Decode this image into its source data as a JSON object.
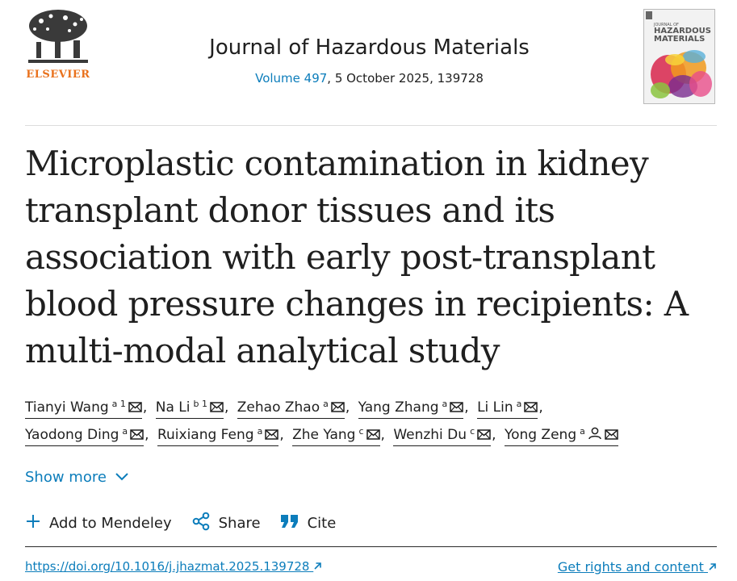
{
  "publisher": {
    "name": "ELSEVIER"
  },
  "journal": {
    "title": "Journal of Hazardous Materials",
    "volume_link": "Volume 497",
    "issue_rest": ", 5 October 2025, 139728",
    "cover_small": "JOURNAL OF",
    "cover_big1": "HAZARDOUS",
    "cover_big2": "MATERIALS"
  },
  "article": {
    "title": "Microplastic contamination in kidney transplant donor tissues and its association with early post-transplant blood pressure changes in recipients: A multi-modal analytical study"
  },
  "authors": [
    {
      "name": "Tianyi Wang",
      "aff": "a 1"
    },
    {
      "name": "Na Li",
      "aff": "b 1"
    },
    {
      "name": "Zehao Zhao",
      "aff": "a"
    },
    {
      "name": "Yang Zhang",
      "aff": "a"
    },
    {
      "name": "Li Lin",
      "aff": "a"
    },
    {
      "name": "Yaodong Ding",
      "aff": "a"
    },
    {
      "name": "Ruixiang Feng",
      "aff": "a"
    },
    {
      "name": "Zhe Yang",
      "aff": "c"
    },
    {
      "name": "Wenzhi Du",
      "aff": "c"
    },
    {
      "name": "Yong Zeng",
      "aff": "a"
    }
  ],
  "separator": ",",
  "show_more": "Show more",
  "actions": {
    "mendeley": "Add to Mendeley",
    "share": "Share",
    "cite": "Cite"
  },
  "doi": "https://doi.org/10.1016/j.jhazmat.2025.139728",
  "rights": "Get rights and content",
  "colors": {
    "link": "#0c7dbb",
    "brand": "#e9711c"
  }
}
